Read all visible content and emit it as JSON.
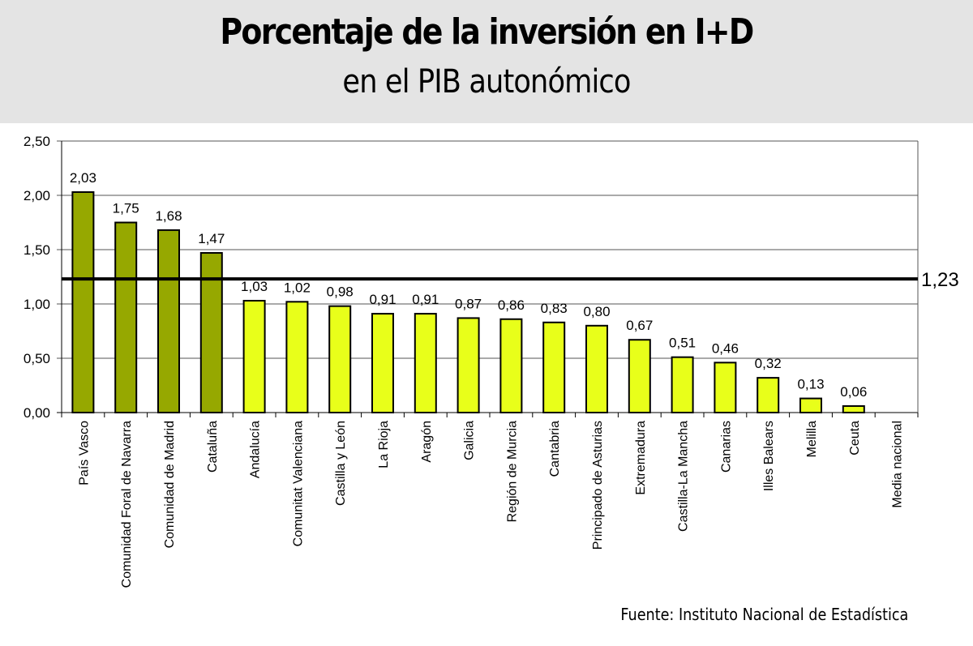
{
  "header": {
    "title": "Porcentaje de la inversión en I+D",
    "subtitle": "en el PIB autonómico"
  },
  "source": "Fuente: Instituto Nacional de Estadística",
  "chart_data": {
    "type": "bar",
    "categories": [
      "País Vasco",
      "Comunidad Foral de Navarra",
      "Comunidad de Madrid",
      "Cataluña",
      "Andalucía",
      "Comunitat Valenciana",
      "Castilla y León",
      "La Rioja",
      "Aragón",
      "Galicia",
      "Región de Murcia",
      "Cantabria",
      "Principado de Asturias",
      "Extremadura",
      "Castilla-La Mancha",
      "Canarias",
      "Illes Balears",
      "Melilla",
      "Ceuta"
    ],
    "values": [
      2.03,
      1.75,
      1.68,
      1.47,
      1.03,
      1.02,
      0.98,
      0.91,
      0.91,
      0.87,
      0.86,
      0.83,
      0.8,
      0.67,
      0.51,
      0.46,
      0.32,
      0.13,
      0.06
    ],
    "data_labels": [
      "2,03",
      "1,75",
      "1,68",
      "1,47",
      "1,03",
      "1,02",
      "0,98",
      "0,91",
      "0,91",
      "0,87",
      "0,86",
      "0,83",
      "0,80",
      "0,67",
      "0,51",
      "0,46",
      "0,32",
      "0,13",
      "0,06"
    ],
    "ylim": [
      0,
      2.5
    ],
    "yticks": [
      "0,00",
      "0,50",
      "1,00",
      "1,50",
      "2,00",
      "2,50"
    ],
    "grid": true,
    "reference_line": {
      "label": "Media nacional",
      "value": 1.23,
      "value_label": "1,23"
    },
    "colors": {
      "above_average": "#96a800",
      "below_average": "#e8ff1a",
      "reference_line": "#000000"
    }
  }
}
